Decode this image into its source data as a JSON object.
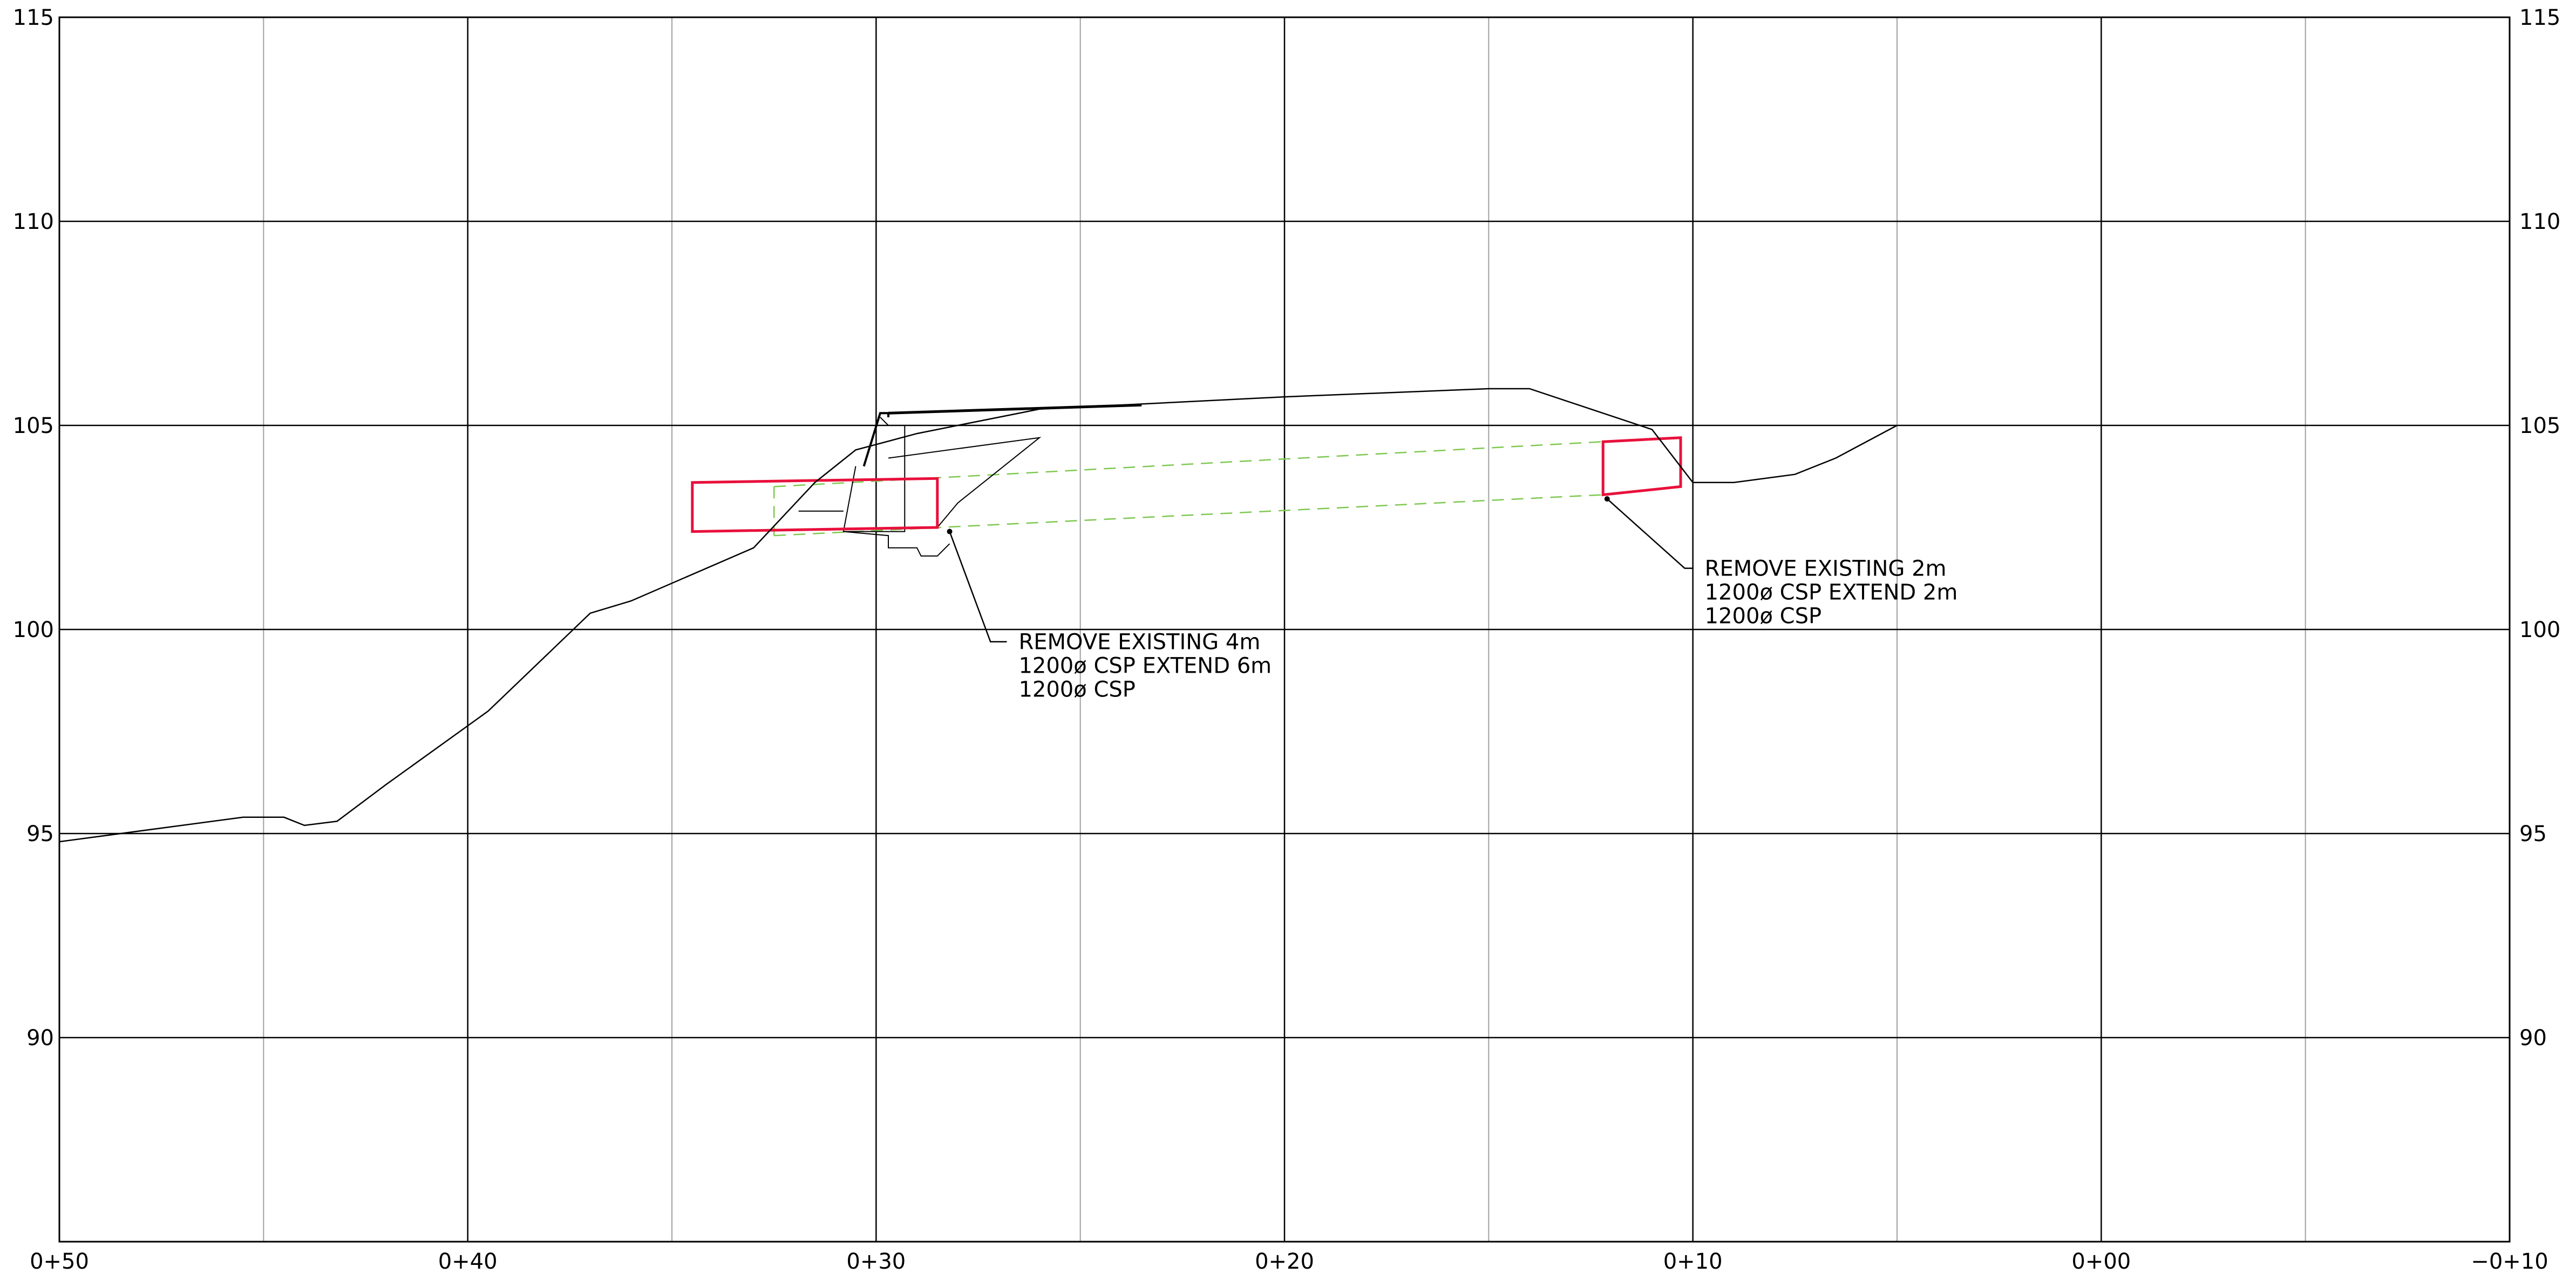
{
  "chart_data": {
    "type": "profile",
    "x_ticks": [
      "0+50",
      "0+40",
      "0+30",
      "0+20",
      "0+10",
      "0+00",
      "−0+10"
    ],
    "y_ticks": [
      "115",
      "110",
      "105",
      "100",
      "95",
      "90"
    ],
    "xlim": [
      50,
      -10
    ],
    "ylim": [
      85,
      115
    ],
    "grid": true,
    "major_x_every": 10,
    "minor_x_every": 5,
    "y_every": 5,
    "colors": {
      "grid_major": "#000000",
      "grid_minor": "#a0a0a0",
      "ground_line": "#000000",
      "pipe_outline": "#e8103c",
      "pipe_invert": "#7ec850"
    },
    "ground_profile": [
      [
        50,
        94.8
      ],
      [
        45.5,
        95.4
      ],
      [
        44.5,
        95.4
      ],
      [
        44.0,
        95.2
      ],
      [
        43.2,
        95.3
      ],
      [
        42.0,
        96.2
      ],
      [
        39.5,
        98.0
      ],
      [
        37.0,
        100.4
      ],
      [
        36.0,
        100.7
      ],
      [
        33.0,
        102.0
      ],
      [
        31.5,
        103.6
      ],
      [
        30.5,
        104.4
      ],
      [
        29.0,
        104.8
      ],
      [
        26.0,
        105.4
      ],
      [
        20.0,
        105.7
      ],
      [
        15.0,
        105.9
      ],
      [
        14.0,
        105.9
      ],
      [
        11.0,
        104.9
      ],
      [
        10.0,
        103.6
      ],
      [
        9.0,
        103.6
      ],
      [
        7.5,
        103.8
      ],
      [
        6.5,
        104.2
      ],
      [
        5.0,
        105.0
      ]
    ],
    "culvert_left": {
      "box": [
        [
          34.5,
          103.6
        ],
        [
          28.5,
          103.7
        ],
        [
          28.5,
          102.5
        ],
        [
          34.5,
          102.4
        ]
      ],
      "road_surface": [
        [
          29.7,
          105.3
        ],
        [
          23.5,
          105.5
        ]
      ],
      "invert_top": [
        [
          32.5,
          103.5
        ],
        [
          12.2,
          104.6
        ]
      ],
      "invert_bottom": [
        [
          32.5,
          102.3
        ],
        [
          12.2,
          103.3
        ]
      ],
      "leader": [
        [
          28.2,
          102.4
        ],
        [
          27.2,
          99.7
        ],
        [
          26.8,
          99.7
        ]
      ],
      "note": [
        "REMOVE  EXISTING  4m",
        "1200ø  CSP  EXTEND  6m",
        "1200ø  CSP"
      ]
    },
    "culvert_right": {
      "box": [
        [
          12.2,
          104.6
        ],
        [
          10.3,
          104.7
        ],
        [
          10.3,
          103.5
        ],
        [
          12.2,
          103.3
        ]
      ],
      "leader": [
        [
          12.1,
          103.2
        ],
        [
          10.2,
          101.5
        ],
        [
          10.0,
          101.5
        ]
      ],
      "note": [
        "REMOVE  EXISTING  2m",
        "1200ø  CSP  EXTEND  2m",
        "1200ø  CSP"
      ]
    }
  }
}
